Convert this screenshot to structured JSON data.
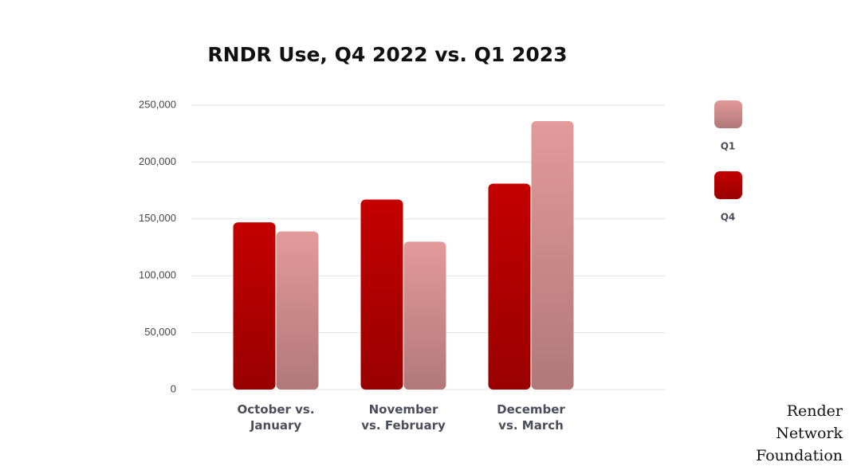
{
  "chart_data": {
    "type": "bar",
    "title": "RNDR Use, Q4 2022 vs. Q1 2023",
    "categories": [
      [
        "October vs.",
        "January"
      ],
      [
        "November",
        "vs. February"
      ],
      [
        "December",
        "vs. March"
      ]
    ],
    "series": [
      {
        "name": "Q4",
        "color": "#c40000",
        "values": [
          147000,
          167000,
          181000
        ]
      },
      {
        "name": "Q1",
        "color": "#e39a9a",
        "values": [
          139000,
          130000,
          236000
        ]
      }
    ],
    "ylim": [
      0,
      250000
    ],
    "yticks": [
      0,
      {
        "value": 50000,
        "label": "50,000"
      },
      {
        "value": 100000,
        "label": "100,000"
      },
      {
        "value": 150000,
        "label": "150,000"
      },
      {
        "value": 200000,
        "label": "200,000"
      },
      {
        "value": 250000,
        "label": "250,000"
      }
    ],
    "grid": true,
    "legend": "right",
    "watermark": [
      "Render",
      "Network",
      "Foundation"
    ]
  }
}
